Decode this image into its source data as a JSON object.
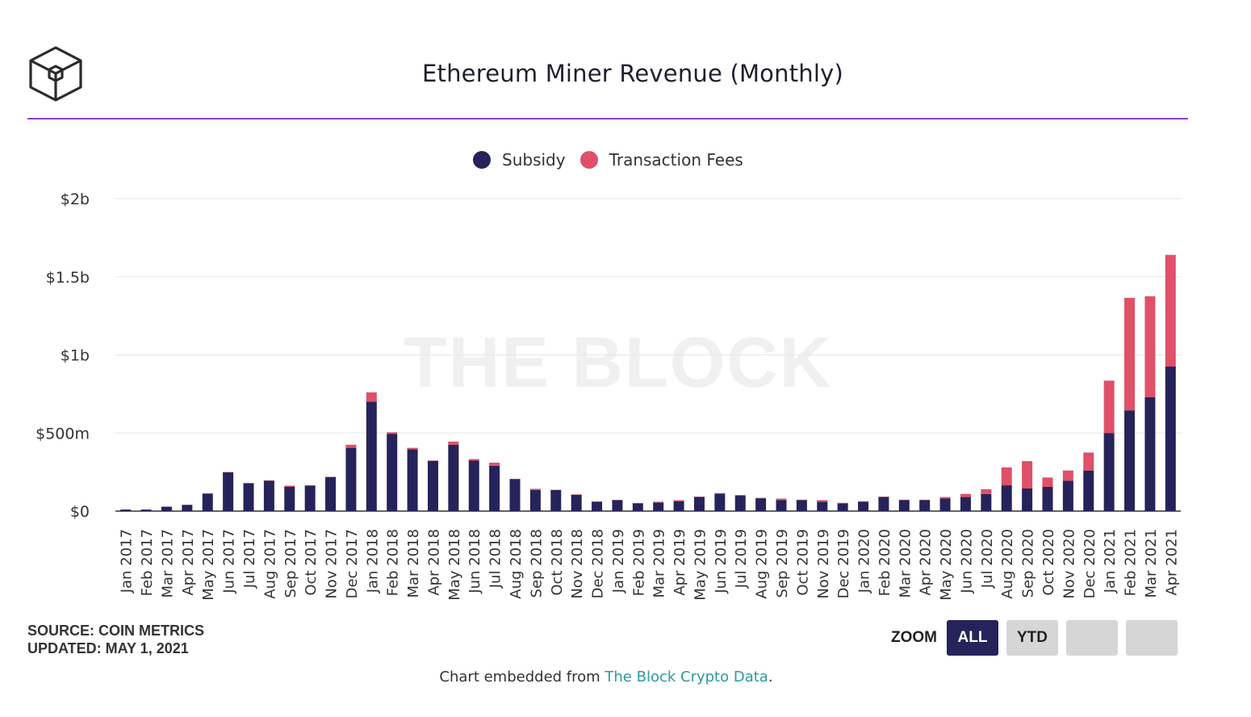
{
  "title": "Ethereum Miner Revenue (Monthly)",
  "watermark": "THE BLOCK",
  "legend": [
    {
      "label": "Subsidy",
      "color": "#26235a"
    },
    {
      "label": "Transaction Fees",
      "color": "#e05068"
    }
  ],
  "source": {
    "line1": "SOURCE: COIN METRICS",
    "line2": "UPDATED: MAY 1, 2021"
  },
  "zoom": {
    "label": "ZOOM",
    "buttons": [
      "ALL",
      "YTD",
      "",
      ""
    ],
    "active": "ALL"
  },
  "footer": {
    "prefix": "Chart embedded from ",
    "link_text": "The Block Crypto Data",
    "suffix": "."
  },
  "chart_data": {
    "type": "bar",
    "stacked": true,
    "title": "Ethereum Miner Revenue (Monthly)",
    "xlabel": "",
    "ylabel": "",
    "ylim": [
      0,
      2000
    ],
    "unit": "millions USD",
    "yticks": [
      {
        "value": 0,
        "label": "$0"
      },
      {
        "value": 500,
        "label": "$500m"
      },
      {
        "value": 1000,
        "label": "$1b"
      },
      {
        "value": 1500,
        "label": "$1.5b"
      },
      {
        "value": 2000,
        "label": "$2b"
      }
    ],
    "grid": true,
    "legend_position": "top-center",
    "categories": [
      "Jan 2017",
      "Feb 2017",
      "Mar 2017",
      "Apr 2017",
      "May 2017",
      "Jun 2017",
      "Jul 2017",
      "Aug 2017",
      "Sep 2017",
      "Oct 2017",
      "Nov 2017",
      "Dec 2017",
      "Jan 2018",
      "Feb 2018",
      "Mar 2018",
      "Apr 2018",
      "May 2018",
      "Jun 2018",
      "Jul 2018",
      "Aug 2018",
      "Sep 2018",
      "Oct 2018",
      "Nov 2018",
      "Dec 2018",
      "Jan 2019",
      "Feb 2019",
      "Mar 2019",
      "Apr 2019",
      "May 2019",
      "Jun 2019",
      "Jul 2019",
      "Aug 2019",
      "Sep 2019",
      "Oct 2019",
      "Nov 2019",
      "Dec 2019",
      "Jan 2020",
      "Feb 2020",
      "Mar 2020",
      "Apr 2020",
      "May 2020",
      "Jun 2020",
      "Jul 2020",
      "Aug 2020",
      "Sep 2020",
      "Oct 2020",
      "Nov 2020",
      "Dec 2020",
      "Jan 2021",
      "Feb 2021",
      "Mar 2021",
      "Apr 2021"
    ],
    "series": [
      {
        "name": "Subsidy",
        "color": "#26235a",
        "values": [
          10,
          10,
          28,
          40,
          112,
          248,
          178,
          195,
          155,
          163,
          218,
          405,
          700,
          495,
          395,
          322,
          425,
          323,
          290,
          205,
          135,
          135,
          105,
          60,
          70,
          50,
          55,
          62,
          90,
          112,
          100,
          82,
          70,
          70,
          60,
          50,
          60,
          90,
          70,
          70,
          80,
          90,
          110,
          165,
          145,
          155,
          195,
          260,
          500,
          645,
          730,
          925
        ]
      },
      {
        "name": "Transaction Fees",
        "color": "#e05068",
        "values": [
          0,
          0,
          1,
          1,
          2,
          2,
          2,
          2,
          8,
          2,
          2,
          20,
          60,
          10,
          10,
          2,
          20,
          10,
          20,
          2,
          8,
          2,
          2,
          2,
          2,
          2,
          5,
          8,
          3,
          3,
          3,
          3,
          10,
          3,
          10,
          3,
          3,
          3,
          3,
          3,
          10,
          20,
          30,
          115,
          175,
          60,
          65,
          115,
          335,
          720,
          645,
          715
        ]
      }
    ]
  }
}
